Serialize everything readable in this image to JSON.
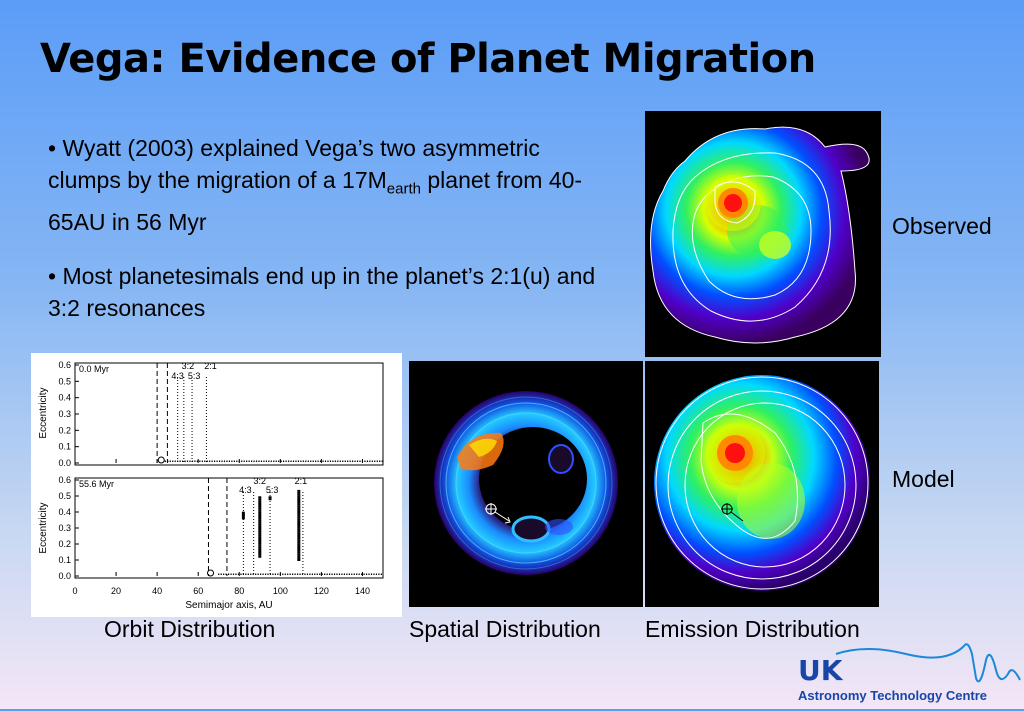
{
  "slide": {
    "title": "Vega: Evidence of Planet Migration",
    "bullets": [
      {
        "text_a": "• Wyatt (2003) explained Vega’s two asymmetric clumps by the migration of a 17M",
        "sub": "earth",
        "text_b": " planet from 40-65AU in 56 Myr"
      },
      {
        "text": "• Most planetesimals end up in the planet’s 2:1(u) and 3:2 resonances"
      }
    ],
    "side_labels": {
      "observed": "Observed",
      "model": "Model"
    },
    "captions": {
      "orbit": "Orbit Distribution",
      "spatial": "Spatial Distribution",
      "emission": "Emission Distribution"
    },
    "logo": {
      "line1": "UK",
      "line2": "Astronomy Technology Centre"
    }
  },
  "orbit_plot": {
    "top_label": "0.0 Myr",
    "bottom_label": "55.6 Myr",
    "ylabel": "Eccentricity",
    "xlabel": "Semimajor axis, AU",
    "yticks": [
      "0.0",
      "0.1",
      "0.2",
      "0.3",
      "0.4",
      "0.5",
      "0.6"
    ],
    "xticks": [
      "0",
      "20",
      "40",
      "60",
      "80",
      "100",
      "120",
      "140"
    ],
    "top_resonances": [
      "4:3",
      "3:2",
      "5:3",
      "2:1"
    ],
    "bottom_resonances": [
      "4:3",
      "3:2",
      "5:3",
      "2:1"
    ]
  }
}
